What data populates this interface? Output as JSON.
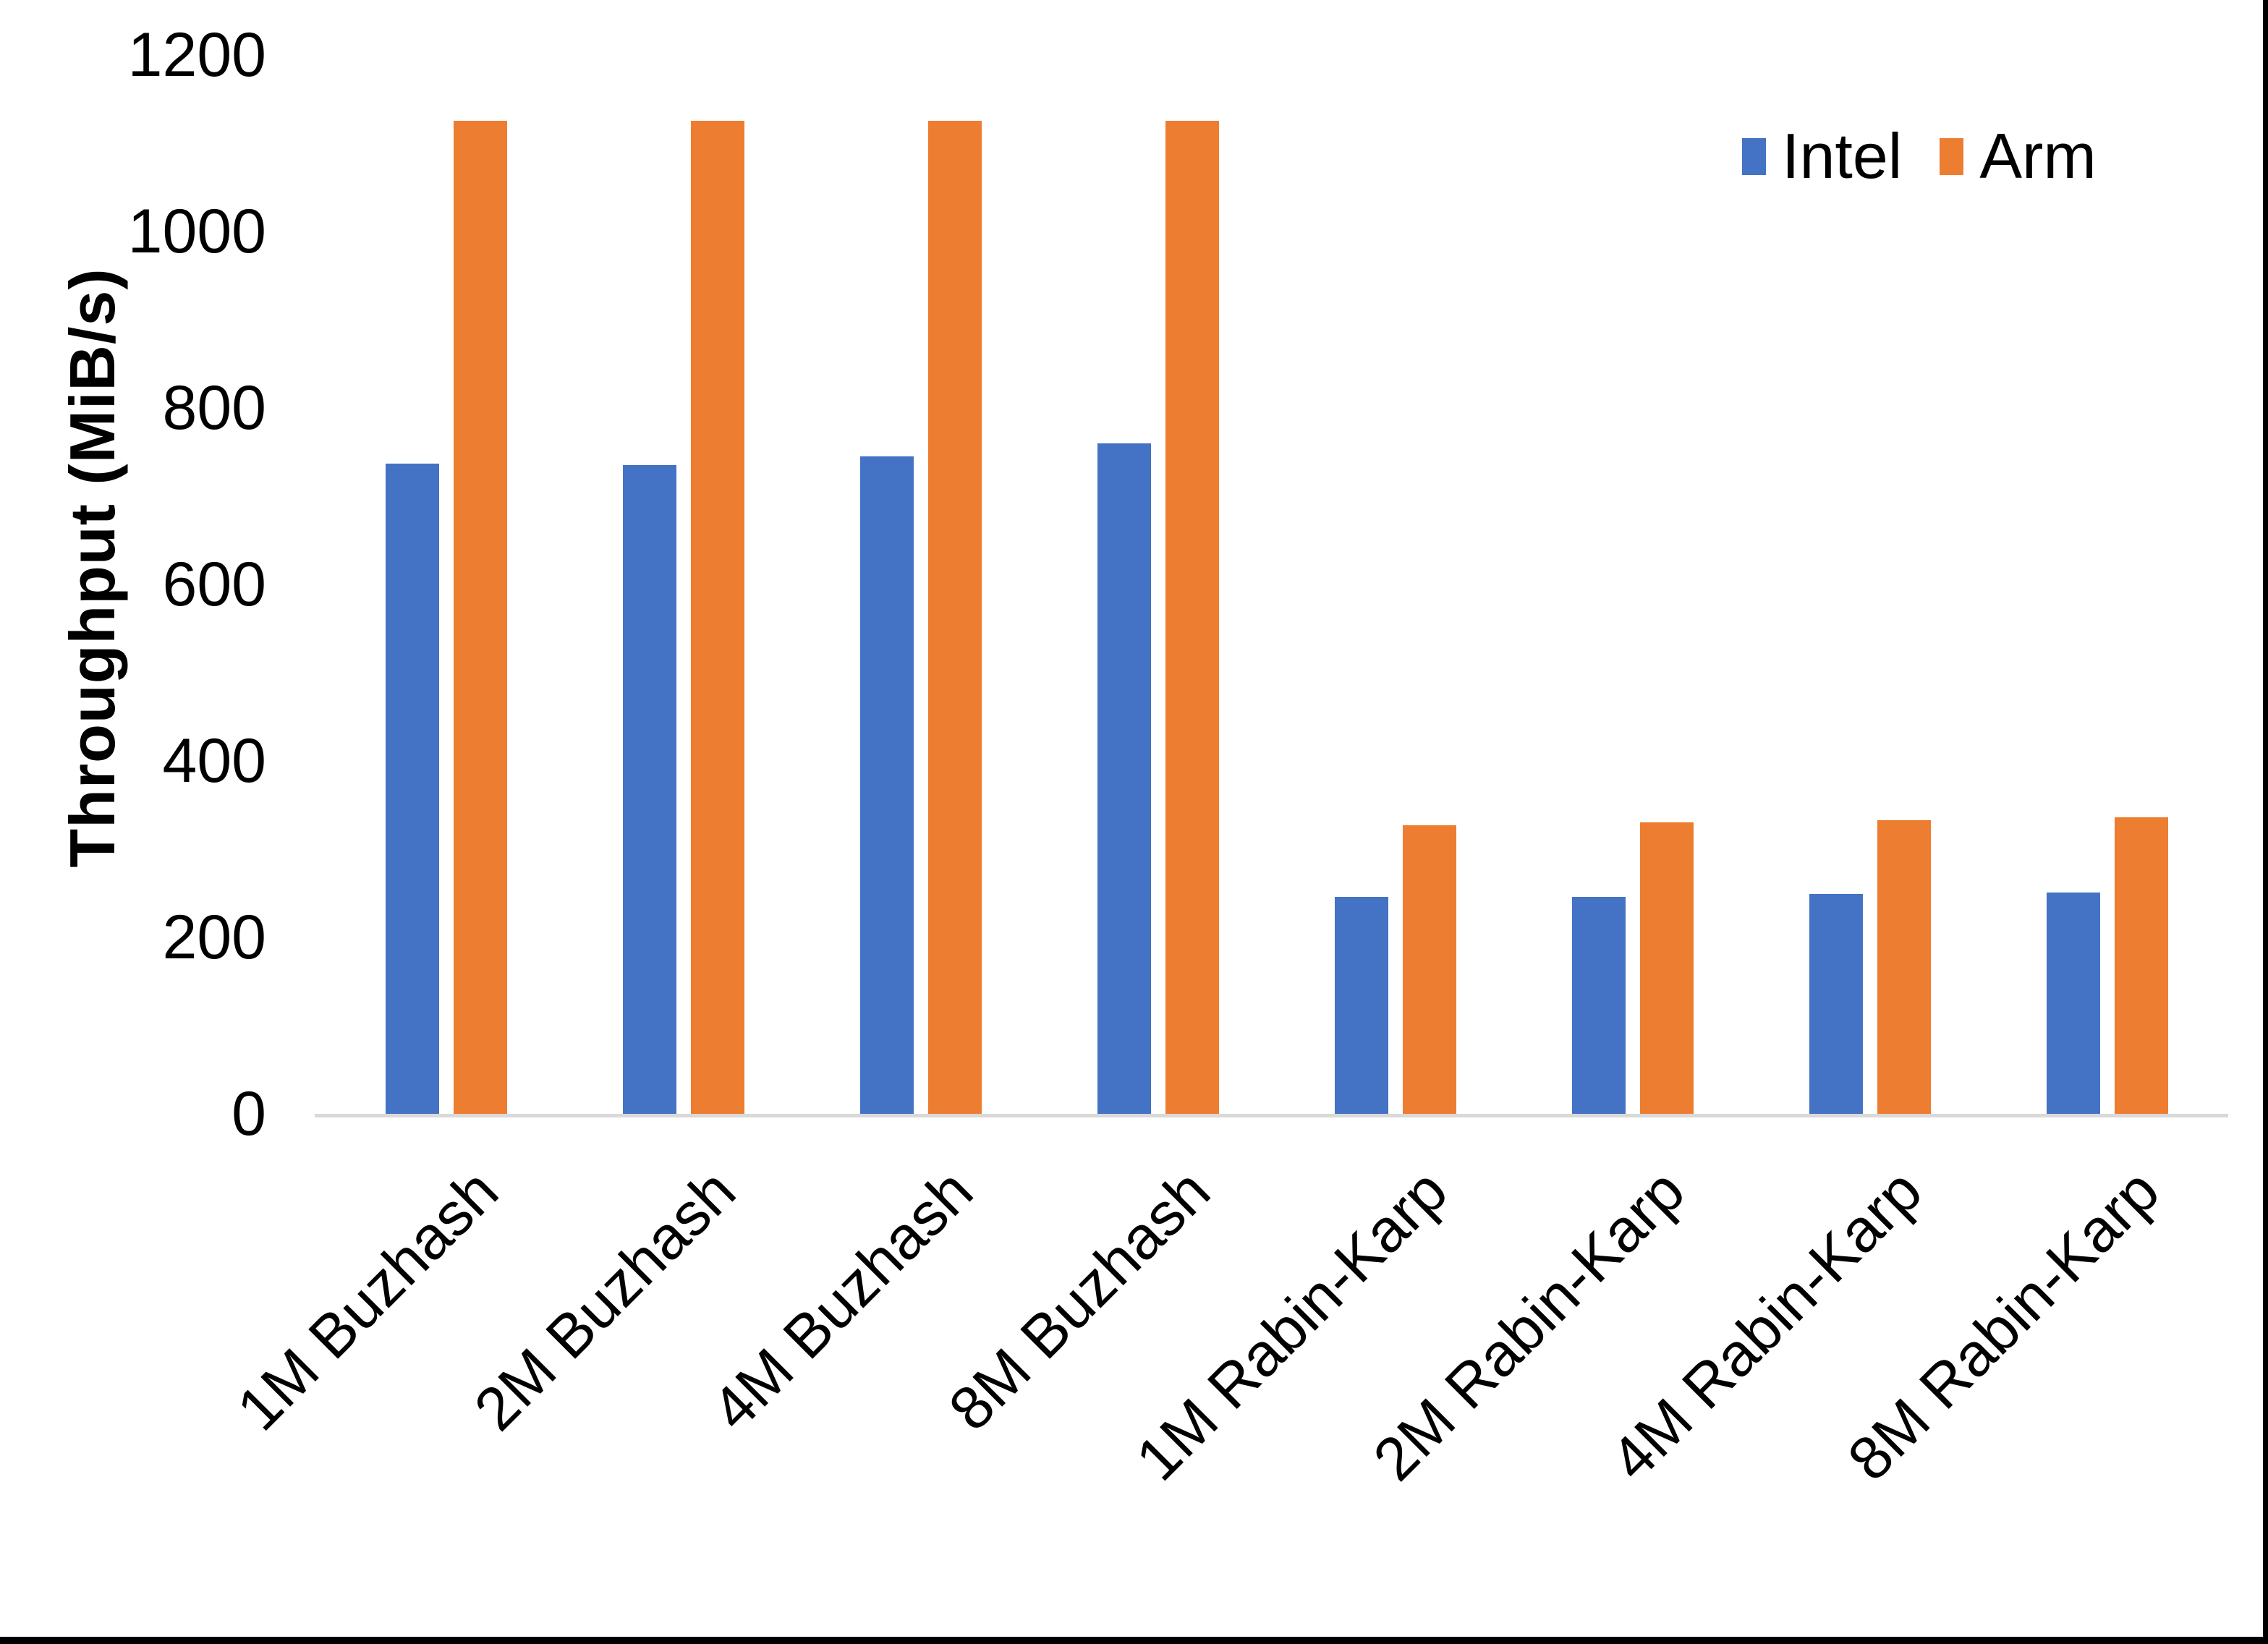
{
  "chart_data": {
    "type": "bar",
    "title": "",
    "xlabel": "",
    "ylabel": "Throughput (MiB/s)",
    "categories": [
      "1M Buzhash",
      "2M Buzhash",
      "4M Buzhash",
      "8M Buzhash",
      "1M Rabin-Karp",
      "2M Rabin-Karp",
      "4M Rabin-Karp",
      "8M Rabin-Karp"
    ],
    "series": [
      {
        "name": "Intel",
        "color": "#4472c4",
        "values": [
          737,
          735,
          745,
          760,
          246,
          246,
          249,
          251
        ]
      },
      {
        "name": "Arm",
        "color": "#ed7d31",
        "values": [
          1125,
          1125,
          1125,
          1125,
          327,
          330,
          333,
          336
        ]
      }
    ],
    "ylim": [
      0,
      1200
    ],
    "yticks": [
      1200,
      1000,
      800,
      600,
      400,
      200,
      0
    ],
    "grid": false,
    "legend_position": "top-right"
  },
  "legend": {
    "items": [
      {
        "label": "Intel",
        "color": "#4472c4"
      },
      {
        "label": "Arm",
        "color": "#ed7d31"
      }
    ]
  },
  "colors": {
    "background": "#ffffff",
    "text": "#000000",
    "axis_line": "#d9d9d9",
    "frame_border": "#000000"
  }
}
